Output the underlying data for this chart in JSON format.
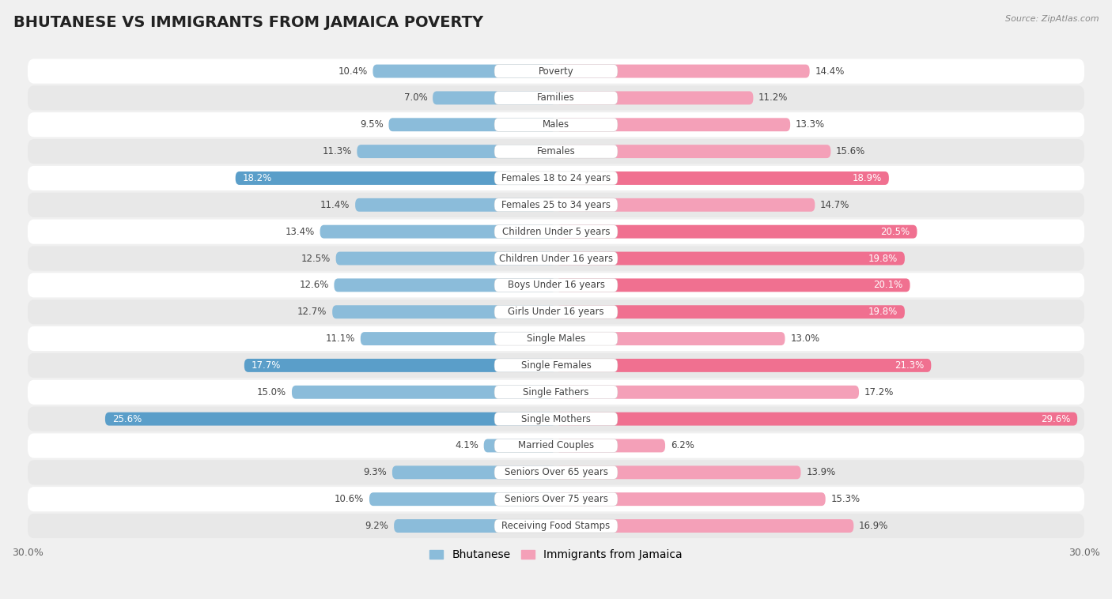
{
  "title": "BHUTANESE VS IMMIGRANTS FROM JAMAICA POVERTY",
  "source": "Source: ZipAtlas.com",
  "categories": [
    "Poverty",
    "Families",
    "Males",
    "Females",
    "Females 18 to 24 years",
    "Females 25 to 34 years",
    "Children Under 5 years",
    "Children Under 16 years",
    "Boys Under 16 years",
    "Girls Under 16 years",
    "Single Males",
    "Single Females",
    "Single Fathers",
    "Single Mothers",
    "Married Couples",
    "Seniors Over 65 years",
    "Seniors Over 75 years",
    "Receiving Food Stamps"
  ],
  "bhutanese": [
    10.4,
    7.0,
    9.5,
    11.3,
    18.2,
    11.4,
    13.4,
    12.5,
    12.6,
    12.7,
    11.1,
    17.7,
    15.0,
    25.6,
    4.1,
    9.3,
    10.6,
    9.2
  ],
  "jamaica": [
    14.4,
    11.2,
    13.3,
    15.6,
    18.9,
    14.7,
    20.5,
    19.8,
    20.1,
    19.8,
    13.0,
    21.3,
    17.2,
    29.6,
    6.2,
    13.9,
    15.3,
    16.9
  ],
  "bhutanese_color": "#8bbcda",
  "jamaica_color": "#f4a0b8",
  "bhutanese_highlight_color": "#5a9ec9",
  "jamaica_highlight_color": "#f07090",
  "bhutanese_highlight_threshold": 17.7,
  "jamaica_highlight_threshold": 18.9,
  "axis_max": 30.0,
  "background_color": "#f0f0f0",
  "row_color_odd": "#ffffff",
  "row_color_even": "#e8e8e8",
  "title_fontsize": 14,
  "label_fontsize": 8.5,
  "value_fontsize": 8.5,
  "legend_fontsize": 10,
  "center_label_color": "#ffffff",
  "center_label_bg": "#e0e0e0"
}
